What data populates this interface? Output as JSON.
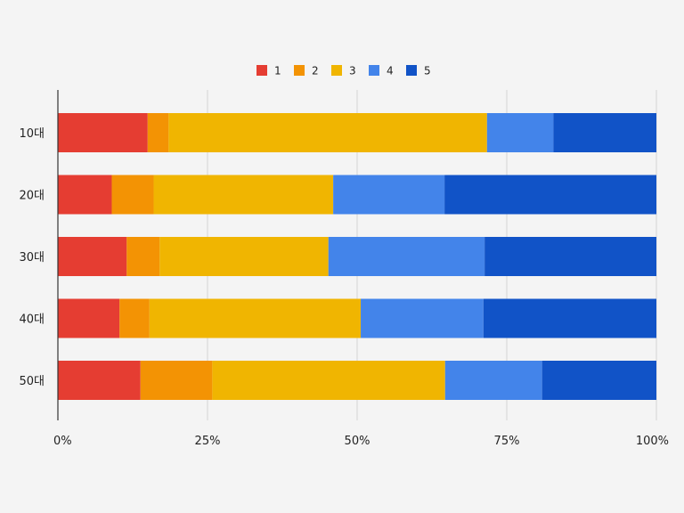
{
  "chart_data": {
    "type": "bar",
    "orientation": "horizontal",
    "stacked": "percent",
    "title": "",
    "xlabel": "",
    "ylabel": "",
    "xlim": [
      0,
      100
    ],
    "x_ticks": [
      "0%",
      "25%",
      "50%",
      "75%",
      "100%"
    ],
    "x_tick_values": [
      0,
      25,
      50,
      75,
      100
    ],
    "grid": true,
    "legend_position": "top-center",
    "categories": [
      "10대",
      "20대",
      "30대",
      "40대",
      "50대"
    ],
    "series": [
      {
        "name": "1",
        "color": "#e53d32",
        "values": [
          15.0,
          9.0,
          11.5,
          10.3,
          13.8
        ]
      },
      {
        "name": "2",
        "color": "#f39304",
        "values": [
          3.5,
          7.0,
          5.5,
          5.0,
          12.0
        ]
      },
      {
        "name": "3",
        "color": "#f0b501",
        "values": [
          53.2,
          30.0,
          28.2,
          35.3,
          38.9
        ]
      },
      {
        "name": "4",
        "color": "#4384ea",
        "values": [
          11.1,
          18.6,
          26.1,
          20.5,
          16.2
        ]
      },
      {
        "name": "5",
        "color": "#1153c7",
        "values": [
          17.2,
          35.4,
          28.7,
          28.9,
          19.1
        ]
      }
    ]
  }
}
